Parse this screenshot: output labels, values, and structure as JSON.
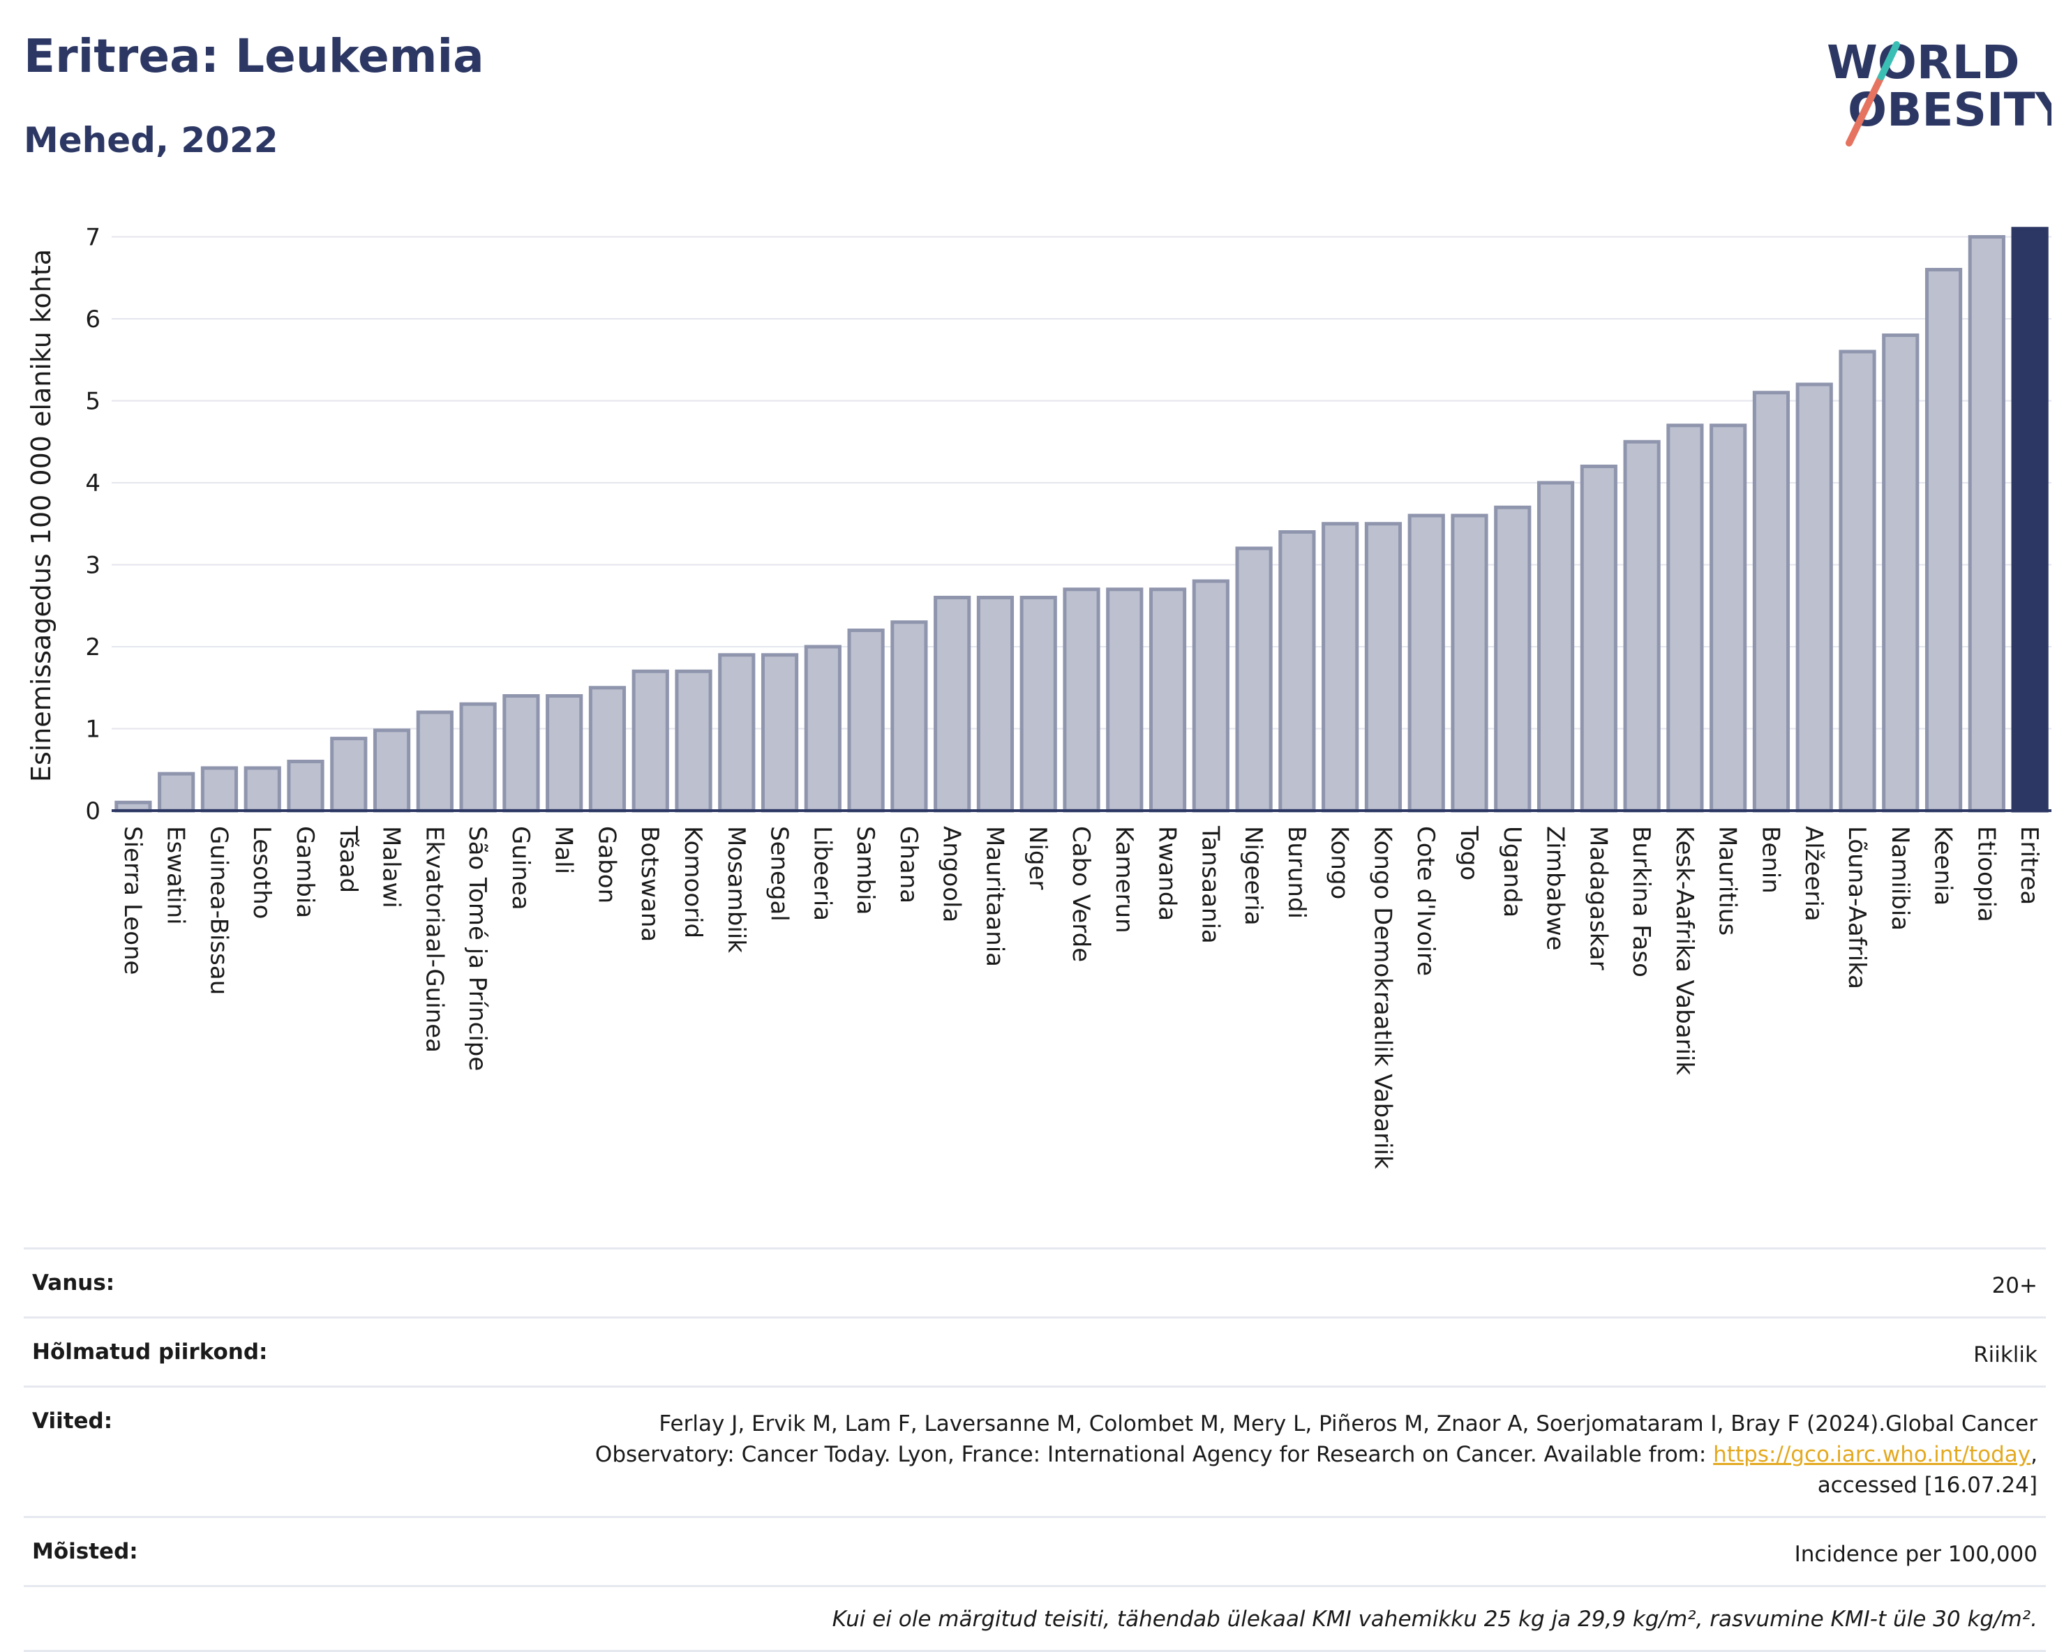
{
  "header": {
    "title": "Eritrea: Leukemia",
    "subtitle": "Mehed, 2022"
  },
  "logo": {
    "line1": "WORLD",
    "line2": "OBESITY",
    "accent_color": "#e5735f",
    "accent_color2": "#3bbfb5",
    "text_color": "#2c3763"
  },
  "colors": {
    "bar_default": "#bcc0cf",
    "bar_default_border": "#8f95ad",
    "bar_highlight": "#2c3763",
    "grid": "#e4e6ee",
    "axis": "#2c3763"
  },
  "chart_data": {
    "type": "bar",
    "ylabel": "Esinemissagedus 100 000 elaniku kohta",
    "ylim": [
      0,
      7.2
    ],
    "yticks": [
      0,
      1,
      2,
      3,
      4,
      5,
      6,
      7
    ],
    "highlight": "Eritrea",
    "categories": [
      "Sierra Leone",
      "Eswatini",
      "Guinea-Bissau",
      "Lesotho",
      "Gambia",
      "Tšaad",
      "Malawi",
      "Ekvatoriaal-Guinea",
      "São Tomé ja Príncipe",
      "Guinea",
      "Mali",
      "Gabon",
      "Botswana",
      "Komoorid",
      "Mosambiik",
      "Senegal",
      "Libeeria",
      "Sambia",
      "Ghana",
      "Angoola",
      "Mauritaania",
      "Niger",
      "Cabo Verde",
      "Kamerun",
      "Rwanda",
      "Tansaania",
      "Nigeeria",
      "Burundi",
      "Kongo",
      "Kongo Demokraatlik Vabariik",
      "Cote d'Ivoire",
      "Togo",
      "Uganda",
      "Zimbabwe",
      "Madagaskar",
      "Burkina Faso",
      "Kesk-Aafrika Vabariik",
      "Mauritius",
      "Benin",
      "Alžeeria",
      "Lõuna-Aafrika",
      "Namiibia",
      "Keenia",
      "Etioopia",
      "Eritrea"
    ],
    "values": [
      0.1,
      0.45,
      0.52,
      0.52,
      0.6,
      0.88,
      0.98,
      1.2,
      1.3,
      1.4,
      1.4,
      1.5,
      1.7,
      1.7,
      1.9,
      1.9,
      2.0,
      2.2,
      2.3,
      2.6,
      2.6,
      2.6,
      2.7,
      2.7,
      2.7,
      2.8,
      3.2,
      3.4,
      3.5,
      3.5,
      3.6,
      3.6,
      3.7,
      4.0,
      4.2,
      4.5,
      4.7,
      4.7,
      5.1,
      5.2,
      5.6,
      5.8,
      6.6,
      7.0,
      7.1
    ]
  },
  "meta": {
    "age_label": "Vanus:",
    "age_value": "20+",
    "region_label": "Hõlmatud piirkond:",
    "region_value": "Riiklik",
    "refs_label": "Viited:",
    "refs_text_1": "Ferlay J, Ervik M, Lam F, Laversanne M, Colombet M, Mery L, Piñeros M, Znaor A, Soerjomataram I, Bray F (2024).Global Cancer",
    "refs_text_2": "Observatory: Cancer Today. Lyon, France: International Agency for Research on Cancer. Available from: ",
    "refs_link": "https://gco.iarc.who.int/today",
    "refs_text_3": ",",
    "refs_text_4": "accessed [16.07.24]",
    "definitions_label": "Mõisted:",
    "definitions_value": "Incidence per 100,000",
    "note": "Kui ei ole märgitud teisiti, tähendab ülekaal KMI vahemikku 25 kg ja 29,9 kg/m², rasvumine KMI-t üle 30 kg/m²."
  }
}
